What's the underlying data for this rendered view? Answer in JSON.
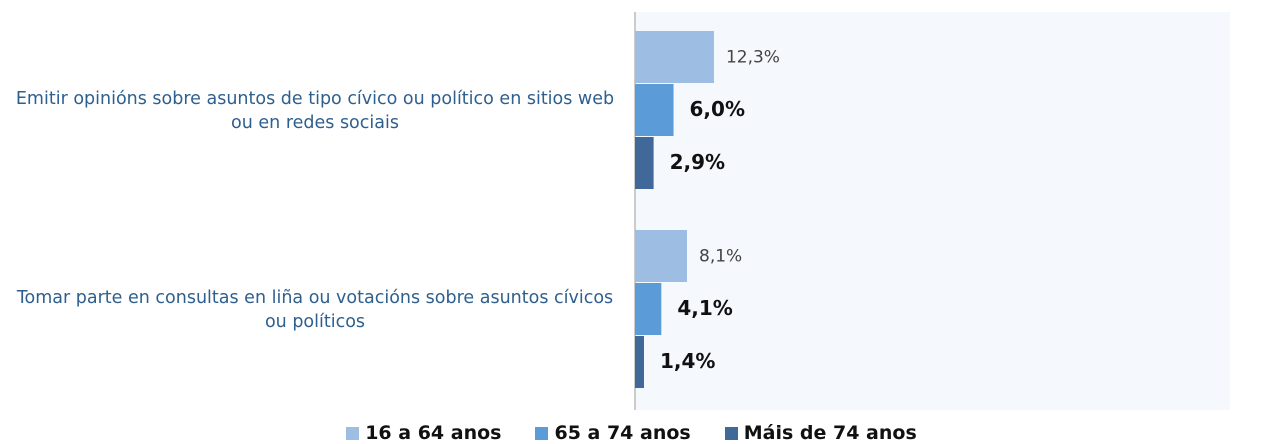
{
  "chart_data": {
    "type": "hbar",
    "categories": [
      "Emitir opinións sobre asuntos de tipo cívico ou político en sitios web ou en redes sociais",
      "Tomar parte en consultas en liña ou votacións sobre asuntos cívicos ou políticos"
    ],
    "series": [
      {
        "name": "16 a 64 anos",
        "color": "#9dbde2",
        "values": [
          12.3,
          8.1
        ],
        "value_labels": [
          "12,3%",
          "8,1%"
        ]
      },
      {
        "name": "65 a 74 anos",
        "color": "#5b9bd8",
        "values": [
          6.0,
          4.1
        ],
        "value_labels": [
          "6,0%",
          "4,1%"
        ]
      },
      {
        "name": "Máis de 74 anos",
        "color": "#40699a",
        "values": [
          2.9,
          1.4
        ],
        "value_labels": [
          "2,9%",
          "1,4%"
        ]
      }
    ],
    "legend": "bottom"
  }
}
